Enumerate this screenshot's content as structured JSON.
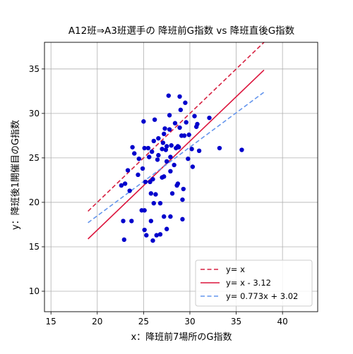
{
  "chart_data": {
    "type": "scatter",
    "title": "A12班⇒A3班選手の 降班前G指数 vs 降班直後G指数",
    "xlabel": "x：降班前7場所のG指数",
    "ylabel": "y：降班後1開催目のG指数",
    "xlim": [
      14.3,
      43.8
    ],
    "ylim": [
      7.7,
      38.0
    ],
    "xticks": [
      15,
      20,
      25,
      30,
      35,
      40
    ],
    "yticks": [
      10,
      15,
      20,
      25,
      30,
      35
    ],
    "grid": true,
    "legend_position": "lower-right",
    "colors": {
      "points": "#0000cc",
      "identity": "#d62040",
      "offset": "#dc143c",
      "regression": "#6495ed"
    },
    "lines": [
      {
        "name": "y= x",
        "style": "dashed",
        "color": "#d62040",
        "x": [
          19.0,
          38.0
        ],
        "y": [
          19.0,
          38.0
        ]
      },
      {
        "name": "y= x - 3.12",
        "style": "solid",
        "color": "#dc143c",
        "x": [
          19.0,
          38.0
        ],
        "y": [
          15.88,
          34.88
        ]
      },
      {
        "name": "y= 0.773x + 3.02",
        "style": "dashed",
        "color": "#6495ed",
        "x": [
          19.0,
          38.0
        ],
        "y": [
          17.71,
          32.39
        ]
      }
    ],
    "points": [
      [
        22.6,
        21.9
      ],
      [
        22.8,
        17.9
      ],
      [
        22.9,
        15.8
      ],
      [
        23.0,
        22.1
      ],
      [
        23.3,
        23.6
      ],
      [
        23.5,
        21.3
      ],
      [
        23.7,
        17.9
      ],
      [
        23.8,
        26.2
      ],
      [
        24.0,
        25.5
      ],
      [
        24.4,
        23.1
      ],
      [
        24.5,
        24.9
      ],
      [
        24.8,
        19.1
      ],
      [
        24.9,
        23.8
      ],
      [
        25.0,
        29.1
      ],
      [
        25.1,
        19.1
      ],
      [
        25.1,
        16.9
      ],
      [
        25.1,
        26.1
      ],
      [
        25.2,
        22.3
      ],
      [
        25.3,
        16.3
      ],
      [
        25.5,
        26.1
      ],
      [
        25.6,
        25.1
      ],
      [
        25.7,
        22.3
      ],
      [
        25.8,
        21.0
      ],
      [
        25.8,
        17.9
      ],
      [
        25.9,
        25.7
      ],
      [
        26.0,
        22.6
      ],
      [
        26.0,
        15.7
      ],
      [
        26.1,
        26.9
      ],
      [
        26.1,
        19.9
      ],
      [
        26.2,
        29.3
      ],
      [
        26.3,
        20.9
      ],
      [
        26.4,
        16.3
      ],
      [
        26.5,
        24.8
      ],
      [
        26.6,
        27.2
      ],
      [
        26.6,
        25.3
      ],
      [
        26.8,
        19.9
      ],
      [
        26.8,
        16.4
      ],
      [
        27.0,
        22.8
      ],
      [
        27.0,
        26.0
      ],
      [
        27.1,
        26.7
      ],
      [
        27.2,
        27.7
      ],
      [
        27.2,
        22.9
      ],
      [
        27.2,
        18.4
      ],
      [
        27.3,
        28.3
      ],
      [
        27.4,
        25.9
      ],
      [
        27.5,
        24.6
      ],
      [
        27.5,
        17.0
      ],
      [
        27.5,
        26.3
      ],
      [
        27.7,
        32.0
      ],
      [
        27.8,
        29.8
      ],
      [
        27.8,
        28.2
      ],
      [
        27.9,
        25.1
      ],
      [
        27.9,
        23.5
      ],
      [
        27.9,
        18.4
      ],
      [
        28.0,
        26.4
      ],
      [
        28.1,
        21.0
      ],
      [
        28.3,
        24.2
      ],
      [
        28.4,
        28.9
      ],
      [
        28.5,
        26.1
      ],
      [
        28.6,
        21.9
      ],
      [
        28.7,
        22.1
      ],
      [
        28.7,
        26.3
      ],
      [
        28.8,
        26.2
      ],
      [
        28.9,
        31.9
      ],
      [
        28.9,
        28.4
      ],
      [
        29.0,
        30.4
      ],
      [
        29.1,
        27.5
      ],
      [
        29.2,
        20.3
      ],
      [
        29.2,
        18.1
      ],
      [
        29.3,
        21.5
      ],
      [
        29.4,
        27.5
      ],
      [
        29.5,
        31.2
      ],
      [
        29.6,
        29.0
      ],
      [
        29.8,
        24.9
      ],
      [
        29.9,
        27.6
      ],
      [
        30.2,
        26.0
      ],
      [
        30.3,
        24.0
      ],
      [
        30.5,
        29.7
      ],
      [
        30.7,
        28.5
      ],
      [
        30.8,
        28.8
      ],
      [
        31.0,
        25.8
      ],
      [
        32.1,
        29.5
      ],
      [
        33.2,
        26.1
      ],
      [
        35.6,
        25.9
      ]
    ]
  }
}
